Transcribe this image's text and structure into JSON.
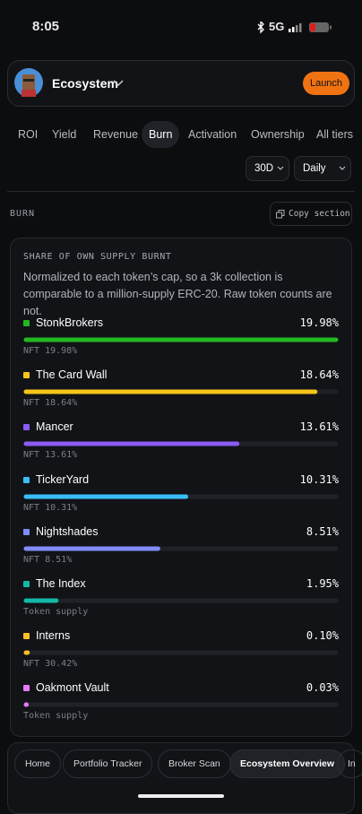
{
  "status": {
    "time": "8:05",
    "network": "5G"
  },
  "header": {
    "title": "Ecosystem",
    "action": "Launch"
  },
  "tabs": {
    "items": [
      "ROI",
      "Yield",
      "Revenue",
      "Burn",
      "Activation",
      "Ownership",
      "All tiers"
    ],
    "selected": 3
  },
  "filters": {
    "range": "30D",
    "interval": "Daily"
  },
  "section": {
    "label": "BURN",
    "copy": "Copy section"
  },
  "card": {
    "title": "SHARE OF OWN SUPPLY BURNT",
    "description": "Normalized to each token’s cap, so a 3k collection is comparable to a million-supply ERC-20. Raw token counts are not.",
    "items": [
      {
        "name": "StonkBrokers",
        "value": 19.98,
        "value_label": "19.98%",
        "note": "NFT 19.98%",
        "color": "#22b822"
      },
      {
        "name": "The Card Wall",
        "value": 18.64,
        "value_label": "18.64%",
        "note": "NFT 18.64%",
        "color": "#f5c518"
      },
      {
        "name": "Mancer",
        "value": 13.61,
        "value_label": "13.61%",
        "note": "NFT 13.61%",
        "color": "#8b5cf6"
      },
      {
        "name": "TickerYard",
        "value": 10.31,
        "value_label": "10.31%",
        "note": "NFT 10.31%",
        "color": "#38bdf8"
      },
      {
        "name": "Nightshades",
        "value": 8.51,
        "value_label": "8.51%",
        "note": "NFT 8.51%",
        "color": "#818cf8"
      },
      {
        "name": "The Index",
        "value": 1.95,
        "value_label": "1.95%",
        "note": "Token supply",
        "color": "#14b8a6"
      },
      {
        "name": "Interns",
        "value": 0.1,
        "value_label": "0.10%",
        "note": "NFT 30.42%",
        "color": "#fbbf24"
      },
      {
        "name": "Oakmont Vault",
        "value": 0.03,
        "value_label": "0.03%",
        "note": "Token supply",
        "color": "#e879f9"
      }
    ]
  },
  "nav": {
    "items": [
      "Home",
      "Portfolio Tracker",
      "Broker Scan",
      "Ecosystem Overview",
      "In"
    ]
  }
}
